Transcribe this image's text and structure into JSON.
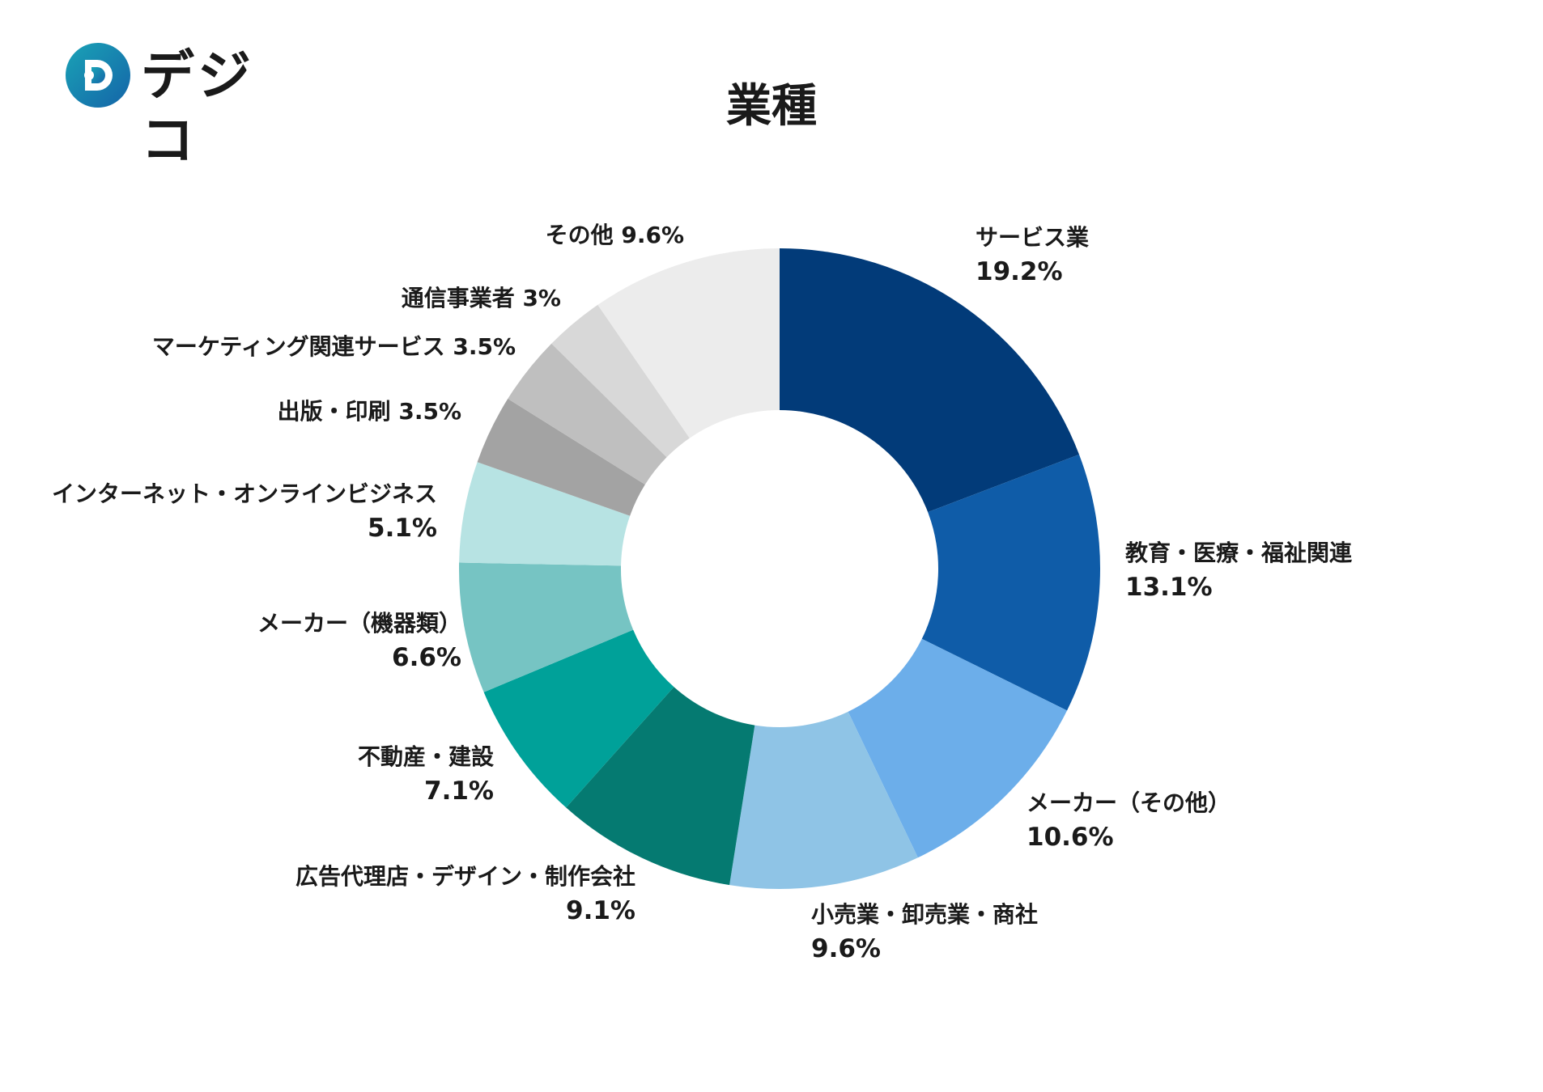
{
  "logo": {
    "text": "デジコ"
  },
  "title": "業種",
  "chart_data": {
    "type": "donut",
    "title": "業種",
    "unit": "%",
    "slices": [
      {
        "label": "サービス業",
        "value": 19.2,
        "value_label": "19.2%",
        "color": "#023b79"
      },
      {
        "label": "教育・医療・福祉関連",
        "value": 13.1,
        "value_label": "13.1%",
        "color": "#0f5ca8"
      },
      {
        "label": "メーカー（その他）",
        "value": 10.6,
        "value_label": "10.6%",
        "color": "#6caeea"
      },
      {
        "label": "小売業・卸売業・商社",
        "value": 9.6,
        "value_label": "9.6%",
        "color": "#8fc4e6"
      },
      {
        "label": "広告代理店・デザイン・制作会社",
        "value": 9.1,
        "value_label": "9.1%",
        "color": "#057a71"
      },
      {
        "label": "不動産・建設",
        "value": 7.1,
        "value_label": "7.1%",
        "color": "#00a199"
      },
      {
        "label": "メーカー（機器類）",
        "value": 6.6,
        "value_label": "6.6%",
        "color": "#76c4c3"
      },
      {
        "label": "インターネット・オンラインビジネス",
        "value": 5.1,
        "value_label": "5.1%",
        "color": "#b7e3e3"
      },
      {
        "label": "出版・印刷",
        "value": 3.5,
        "value_label": "3.5%",
        "color": "#a3a3a3"
      },
      {
        "label": "マーケティング関連サービス",
        "value": 3.5,
        "value_label": "3.5%",
        "color": "#bfbfbf"
      },
      {
        "label": "通信事業者",
        "value": 3,
        "value_label": "3%",
        "color": "#d8d8d8"
      },
      {
        "label": "その他",
        "value": 9.6,
        "value_label": "9.6%",
        "color": "#ececec"
      }
    ]
  }
}
